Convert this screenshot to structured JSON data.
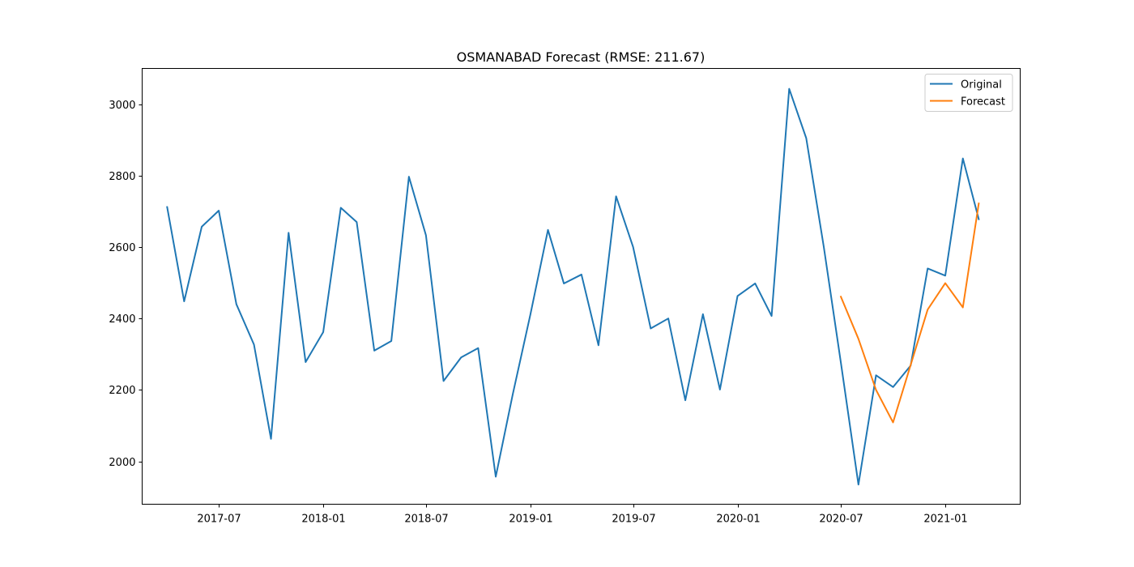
{
  "chart_data": {
    "type": "line",
    "title": "OSMANABAD Forecast (RMSE: 211.67)",
    "xlabel": "",
    "ylabel": "",
    "xlim": [
      "2017-02-16",
      "2021-05-13"
    ],
    "ylim": [
      1880,
      3100
    ],
    "xticks": [
      "2017-07",
      "2018-01",
      "2018-07",
      "2019-01",
      "2019-07",
      "2020-01",
      "2020-07",
      "2021-01"
    ],
    "yticks": [
      2000,
      2200,
      2400,
      2600,
      2800,
      3000
    ],
    "grid": false,
    "legend": "top-right",
    "series": [
      {
        "name": "Original",
        "color": "#1f77b4",
        "x": [
          "2017-04-01",
          "2017-05-01",
          "2017-06-01",
          "2017-07-01",
          "2017-08-01",
          "2017-09-01",
          "2017-10-01",
          "2017-11-01",
          "2017-12-01",
          "2018-01-01",
          "2018-02-01",
          "2018-03-01",
          "2018-04-01",
          "2018-05-01",
          "2018-06-01",
          "2018-07-01",
          "2018-08-01",
          "2018-09-01",
          "2018-10-01",
          "2018-11-01",
          "2018-12-01",
          "2019-01-01",
          "2019-02-01",
          "2019-03-01",
          "2019-04-01",
          "2019-05-01",
          "2019-06-01",
          "2019-07-01",
          "2019-08-01",
          "2019-09-01",
          "2019-10-01",
          "2019-11-01",
          "2019-12-01",
          "2020-01-01",
          "2020-02-01",
          "2020-03-01",
          "2020-04-01",
          "2020-05-01",
          "2020-06-01",
          "2020-07-01",
          "2020-08-01",
          "2020-09-01",
          "2020-10-01",
          "2020-11-01",
          "2020-12-01",
          "2021-01-01",
          "2021-02-01",
          "2021-03-01"
        ],
        "values": [
          2712,
          2448,
          2657,
          2702,
          2440,
          2327,
          2063,
          2640,
          2278,
          2362,
          2710,
          2670,
          2310,
          2337,
          2797,
          2633,
          2225,
          2291,
          2317,
          1957,
          2188,
          2411,
          2648,
          2498,
          2523,
          2325,
          2742,
          2600,
          2372,
          2400,
          2171,
          2412,
          2201,
          2463,
          2498,
          2407,
          3043,
          2905,
          2600,
          2277,
          1935,
          2241,
          2208,
          2268,
          2540,
          2520,
          2848,
          2678
        ]
      },
      {
        "name": "Forecast",
        "color": "#ff7f0e",
        "x": [
          "2020-07-01",
          "2020-08-01",
          "2020-09-01",
          "2020-10-01",
          "2020-11-01",
          "2020-12-01",
          "2021-01-01",
          "2021-02-01",
          "2021-03-01"
        ],
        "values": [
          2461,
          2343,
          2200,
          2109,
          2270,
          2425,
          2499,
          2431,
          2722
        ]
      }
    ]
  }
}
